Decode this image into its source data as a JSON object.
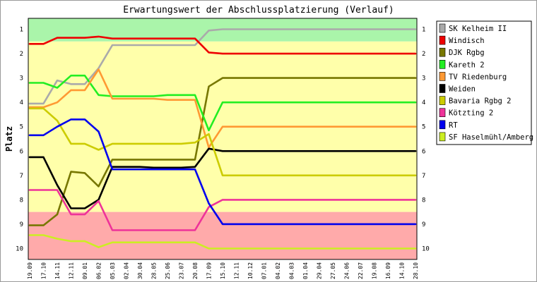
{
  "chart_data": {
    "type": "line",
    "title": "Erwartungswert der Abschlussplatzierung (Verlauf)",
    "ylabel": "Platz",
    "ylim": [
      0.55,
      10.45
    ],
    "y_inverted": true,
    "yticks": [
      1,
      2,
      3,
      4,
      5,
      6,
      7,
      8,
      9,
      10
    ],
    "xticks": [
      "19.09",
      "17.10",
      "14.11",
      "12.11",
      "09.01",
      "06.02",
      "05.03",
      "02.04",
      "30.04",
      "28.05",
      "25.06",
      "23.07",
      "20.08",
      "17.09",
      "15.10",
      "12.11",
      "10.12",
      "07.01",
      "04.02",
      "04.03",
      "01.04",
      "29.04",
      "27.05",
      "24.06",
      "22.07",
      "19.08",
      "16.09",
      "14.10",
      "28.10"
    ],
    "bands": [
      {
        "from": 0.55,
        "to": 1.5,
        "color": "#aaf5aa"
      },
      {
        "from": 1.5,
        "to": 8.5,
        "color": "#ffffaa"
      },
      {
        "from": 8.5,
        "to": 10.45,
        "color": "#ffaaaa"
      }
    ],
    "legend_position": "right",
    "series": [
      {
        "name": "SK Kelheim II",
        "color": "#aaaaaa",
        "values": [
          4.05,
          4.05,
          3.1,
          3.25,
          3.25,
          2.6,
          1.65,
          1.65,
          1.65,
          1.65,
          1.65,
          1.65,
          1.65,
          1.05,
          1.0,
          1.0,
          1.0,
          1.0,
          1.0,
          1.0,
          1.0,
          1.0,
          1.0,
          1.0,
          1.0,
          1.0,
          1.0,
          1.0,
          1.0
        ]
      },
      {
        "name": "Windisch",
        "color": "#ee0000",
        "values": [
          1.6,
          1.6,
          1.35,
          1.35,
          1.35,
          1.3,
          1.38,
          1.38,
          1.38,
          1.38,
          1.38,
          1.38,
          1.38,
          1.95,
          2.0,
          2.0,
          2.0,
          2.0,
          2.0,
          2.0,
          2.0,
          2.0,
          2.0,
          2.0,
          2.0,
          2.0,
          2.0,
          2.0,
          2.0
        ]
      },
      {
        "name": "DJK Rgbg",
        "color": "#777700",
        "values": [
          9.05,
          9.05,
          8.6,
          6.85,
          6.9,
          7.45,
          6.35,
          6.35,
          6.35,
          6.35,
          6.35,
          6.35,
          6.35,
          3.35,
          3.0,
          3.0,
          3.0,
          3.0,
          3.0,
          3.0,
          3.0,
          3.0,
          3.0,
          3.0,
          3.0,
          3.0,
          3.0,
          3.0,
          3.0
        ]
      },
      {
        "name": "Kareth 2",
        "color": "#22ee22",
        "values": [
          3.2,
          3.2,
          3.4,
          2.9,
          2.9,
          3.7,
          3.75,
          3.75,
          3.75,
          3.75,
          3.7,
          3.7,
          3.7,
          5.15,
          4.0,
          4.0,
          4.0,
          4.0,
          4.0,
          4.0,
          4.0,
          4.0,
          4.0,
          4.0,
          4.0,
          4.0,
          4.0,
          4.0,
          4.0
        ]
      },
      {
        "name": "TV Riedenburg",
        "color": "#ff9933",
        "values": [
          4.2,
          4.2,
          4.0,
          3.5,
          3.5,
          2.65,
          3.85,
          3.85,
          3.85,
          3.85,
          3.9,
          3.9,
          3.9,
          5.85,
          5.0,
          5.0,
          5.0,
          5.0,
          5.0,
          5.0,
          5.0,
          5.0,
          5.0,
          5.0,
          5.0,
          5.0,
          5.0,
          5.0,
          5.0
        ]
      },
      {
        "name": "Weiden",
        "color": "#000000",
        "values": [
          6.25,
          6.25,
          7.4,
          8.35,
          8.35,
          8.0,
          6.65,
          6.65,
          6.65,
          6.68,
          6.68,
          6.68,
          6.65,
          5.9,
          6.0,
          6.0,
          6.0,
          6.0,
          6.0,
          6.0,
          6.0,
          6.0,
          6.0,
          6.0,
          6.0,
          6.0,
          6.0,
          6.0,
          6.0
        ]
      },
      {
        "name": "Bavaria Rgbg 2",
        "color": "#cccc00",
        "values": [
          4.25,
          4.25,
          4.75,
          5.7,
          5.7,
          5.95,
          5.7,
          5.7,
          5.7,
          5.7,
          5.7,
          5.7,
          5.65,
          5.3,
          7.0,
          7.0,
          7.0,
          7.0,
          7.0,
          7.0,
          7.0,
          7.0,
          7.0,
          7.0,
          7.0,
          7.0,
          7.0,
          7.0,
          7.0
        ]
      },
      {
        "name": "Kötzting 2",
        "color": "#ee3399",
        "values": [
          7.6,
          7.6,
          7.6,
          8.6,
          8.6,
          8.05,
          9.25,
          9.25,
          9.25,
          9.25,
          9.25,
          9.25,
          9.25,
          8.3,
          8.0,
          8.0,
          8.0,
          8.0,
          8.0,
          8.0,
          8.0,
          8.0,
          8.0,
          8.0,
          8.0,
          8.0,
          8.0,
          8.0,
          8.0
        ]
      },
      {
        "name": "RT",
        "color": "#0000ee",
        "values": [
          5.35,
          5.35,
          5.0,
          4.7,
          4.7,
          5.2,
          6.75,
          6.75,
          6.75,
          6.75,
          6.75,
          6.75,
          6.75,
          8.15,
          9.0,
          9.0,
          9.0,
          9.0,
          9.0,
          9.0,
          9.0,
          9.0,
          9.0,
          9.0,
          9.0,
          9.0,
          9.0,
          9.0,
          9.0
        ]
      },
      {
        "name": "SF Haselmühl/Amberg",
        "color": "#ccee22",
        "values": [
          9.45,
          9.45,
          9.6,
          9.7,
          9.7,
          9.95,
          9.75,
          9.75,
          9.75,
          9.75,
          9.75,
          9.75,
          9.75,
          10.0,
          10.0,
          10.0,
          10.0,
          10.0,
          10.0,
          10.0,
          10.0,
          10.0,
          10.0,
          10.0,
          10.0,
          10.0,
          10.0,
          10.0,
          10.0
        ]
      }
    ]
  }
}
